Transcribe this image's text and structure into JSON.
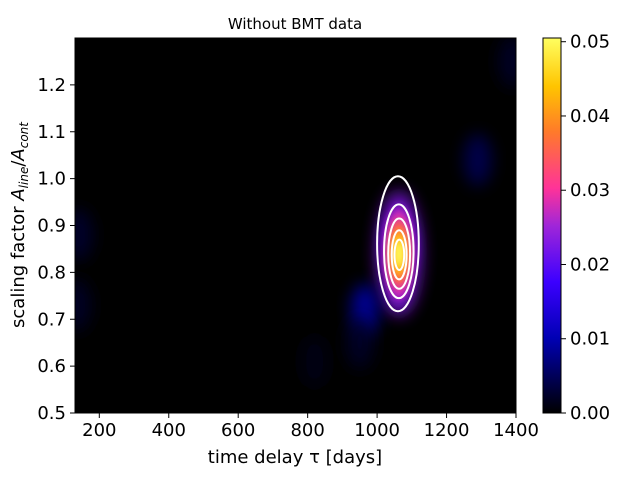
{
  "chart_data": {
    "type": "heatmap",
    "title": "Without BMT data",
    "xlabel": "time delay  τ [days]",
    "ylabel_plain": "scaling factor  ",
    "ylabel_math": {
      "A1": "A",
      "sub1": "line",
      "slash": "/",
      "A2": "A",
      "sub2": "cont"
    },
    "xlim": [
      130,
      1400
    ],
    "ylim": [
      0.5,
      1.3
    ],
    "xticks": [
      200,
      400,
      600,
      800,
      1000,
      1200,
      1400
    ],
    "yticks": [
      0.5,
      0.6,
      0.7,
      0.8,
      0.9,
      1.0,
      1.1,
      1.2
    ],
    "colorbar": {
      "colormap": "gnuplot2",
      "range": [
        0.0,
        0.0505
      ],
      "ticks": [
        0.0,
        0.01,
        0.02,
        0.03,
        0.04,
        0.05
      ],
      "tick_labels": [
        "0.00",
        "0.01",
        "0.02",
        "0.03",
        "0.04",
        "0.05"
      ]
    },
    "density_peaks": [
      {
        "tau": 1063,
        "scale": 0.84,
        "value": 0.0505
      },
      {
        "tau": 1063,
        "scale": 0.86,
        "value": 0.012
      },
      {
        "tau": 965,
        "scale": 0.72,
        "value": 0.006
      },
      {
        "tau": 1290,
        "scale": 1.04,
        "value": 0.003
      },
      {
        "tau": 1390,
        "scale": 1.25,
        "value": 0.0015
      },
      {
        "tau": 140,
        "scale": 0.88,
        "value": 0.0018
      },
      {
        "tau": 135,
        "scale": 0.73,
        "value": 0.0015
      },
      {
        "tau": 950,
        "scale": 0.65,
        "value": 0.0015
      },
      {
        "tau": 820,
        "scale": 0.61,
        "value": 0.0008
      }
    ],
    "contours": [
      {
        "level": 0.005,
        "tau": [
          1000,
          1120
        ],
        "scale": [
          0.717,
          1.005
        ]
      },
      {
        "level": 0.015,
        "tau": [
          1020,
          1105
        ],
        "scale": [
          0.745,
          0.945
        ]
      },
      {
        "level": 0.025,
        "tau": [
          1032,
          1095
        ],
        "scale": [
          0.765,
          0.915
        ]
      },
      {
        "level": 0.035,
        "tau": [
          1042,
          1085
        ],
        "scale": [
          0.785,
          0.89
        ]
      },
      {
        "level": 0.045,
        "tau": [
          1050,
          1078
        ],
        "scale": [
          0.805,
          0.87
        ]
      }
    ],
    "contour_color": "#ffffff",
    "background_color": "#000000"
  }
}
